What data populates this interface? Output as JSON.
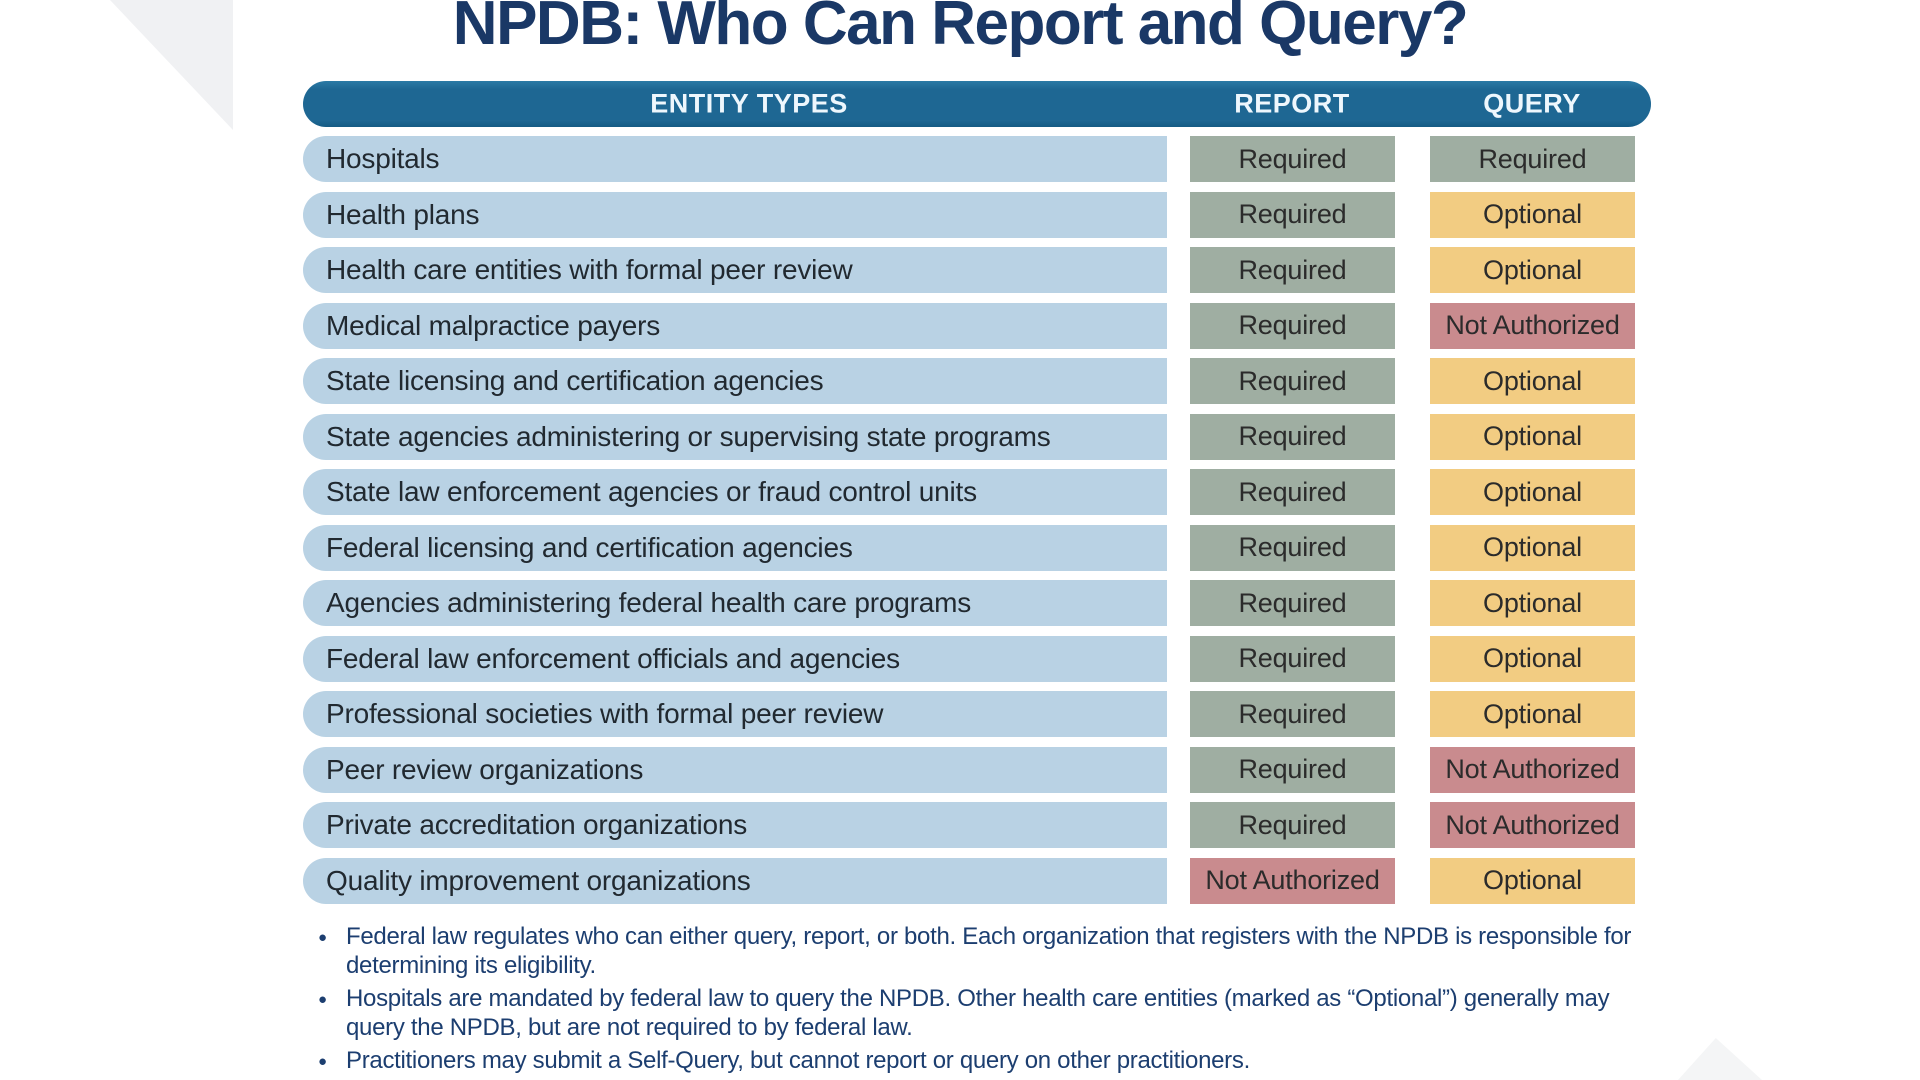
{
  "title": "NPDB: Who Can Report and Query?",
  "table": {
    "headers": {
      "entity": "ENTITY TYPES",
      "report": "REPORT",
      "query": "QUERY"
    },
    "rows": [
      {
        "entity": "Hospitals",
        "report": "Required",
        "query": "Required"
      },
      {
        "entity": "Health plans",
        "report": "Required",
        "query": "Optional"
      },
      {
        "entity": "Health care entities with formal peer review",
        "report": "Required",
        "query": "Optional"
      },
      {
        "entity": "Medical malpractice payers",
        "report": "Required",
        "query": "Not Authorized"
      },
      {
        "entity": "State licensing and certification agencies",
        "report": "Required",
        "query": "Optional"
      },
      {
        "entity": "State agencies administering or supervising state programs",
        "report": "Required",
        "query": "Optional"
      },
      {
        "entity": "State law enforcement agencies or fraud control units",
        "report": "Required",
        "query": "Optional"
      },
      {
        "entity": "Federal licensing and certification agencies",
        "report": "Required",
        "query": "Optional"
      },
      {
        "entity": "Agencies administering federal health care programs",
        "report": "Required",
        "query": "Optional"
      },
      {
        "entity": "Federal law enforcement officials and agencies",
        "report": "Required",
        "query": "Optional"
      },
      {
        "entity": "Professional societies with formal peer review",
        "report": "Required",
        "query": "Optional"
      },
      {
        "entity": "Peer review organizations",
        "report": "Required",
        "query": "Not Authorized"
      },
      {
        "entity": "Private accreditation organizations",
        "report": "Required",
        "query": "Not Authorized"
      },
      {
        "entity": "Quality improvement organizations",
        "report": "Not Authorized",
        "query": "Optional"
      }
    ]
  },
  "footnotes": [
    "Federal law regulates who can either query, report, or both. Each organization that registers with the NPDB is responsible for determining its eligibility.",
    "Hospitals are mandated by federal law to query the NPDB. Other health care entities (marked as “Optional”) generally may query the NPDB, but are not required to by federal law.",
    "Practitioners may submit a Self-Query, but cannot report or query on other practitioners."
  ],
  "bullet_glyph": "●",
  "colors": {
    "header_bar": "#1E6793",
    "entity_row": "#B9D2E4",
    "required_badge": "#9FAEA2",
    "optional_badge": "#F2CC82",
    "not_authorized_badge": "#C98B8E",
    "title_text": "#1A3866",
    "footnote_text": "#1C3E70",
    "badge_text": "#2B2B2B",
    "entity_text": "#212930"
  }
}
